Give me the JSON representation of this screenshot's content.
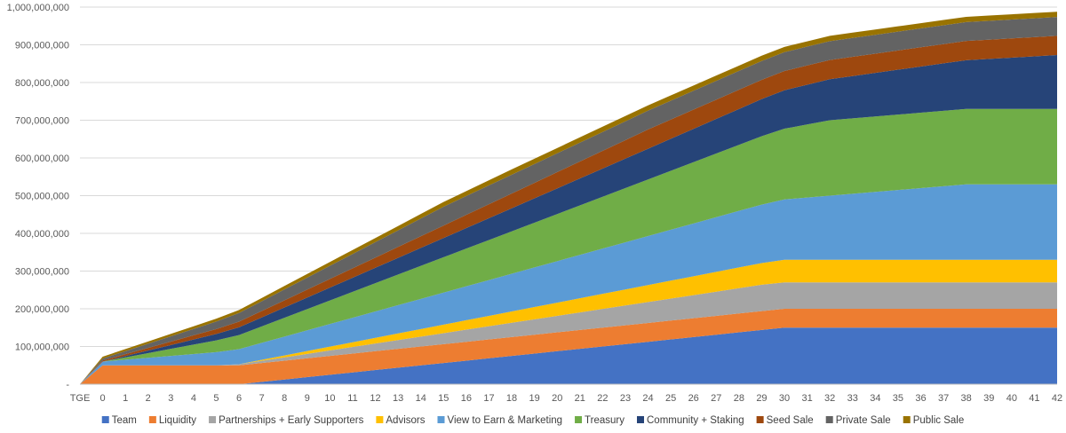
{
  "chart_data": {
    "type": "area",
    "stacked": true,
    "categories": [
      "TGE",
      "0",
      "1",
      "2",
      "3",
      "4",
      "5",
      "6",
      "7",
      "8",
      "9",
      "10",
      "11",
      "12",
      "13",
      "14",
      "15",
      "16",
      "17",
      "18",
      "19",
      "20",
      "21",
      "22",
      "23",
      "24",
      "25",
      "26",
      "27",
      "28",
      "29",
      "30",
      "31",
      "32",
      "33",
      "34",
      "35",
      "36",
      "37",
      "38",
      "39",
      "40",
      "41",
      "42"
    ],
    "ylim": [
      0,
      1000000000
    ],
    "yticks": [
      0,
      100000000,
      200000000,
      300000000,
      400000000,
      500000000,
      600000000,
      700000000,
      800000000,
      900000000,
      1000000000
    ],
    "ytick_labels": [
      "-",
      "100,000,000",
      "200,000,000",
      "300,000,000",
      "400,000,000",
      "500,000,000",
      "600,000,000",
      "700,000,000",
      "800,000,000",
      "900,000,000",
      "1,000,000,000"
    ],
    "grid": true,
    "legend_position": "bottom",
    "series": [
      {
        "name": "Team",
        "color": "#4472C4",
        "values": [
          0,
          0,
          0,
          0,
          0,
          0,
          0,
          0,
          6250000,
          12500000,
          18750000,
          25000000,
          31250000,
          37500000,
          43750000,
          50000000,
          56250000,
          62500000,
          68750000,
          75000000,
          81250000,
          87500000,
          93750000,
          100000000,
          106250000,
          112500000,
          118750000,
          125000000,
          131250000,
          137500000,
          143750000,
          150000000,
          150000000,
          150000000,
          150000000,
          150000000,
          150000000,
          150000000,
          150000000,
          150000000,
          150000000,
          150000000,
          150000000,
          150000000
        ]
      },
      {
        "name": "Liquidity",
        "color": "#ED7D31",
        "values": [
          0,
          50000000,
          50000000,
          50000000,
          50000000,
          50000000,
          50000000,
          50000000,
          50000000,
          50000000,
          50000000,
          50000000,
          50000000,
          50000000,
          50000000,
          50000000,
          50000000,
          50000000,
          50000000,
          50000000,
          50000000,
          50000000,
          50000000,
          50000000,
          50000000,
          50000000,
          50000000,
          50000000,
          50000000,
          50000000,
          50000000,
          50000000,
          50000000,
          50000000,
          50000000,
          50000000,
          50000000,
          50000000,
          50000000,
          50000000,
          50000000,
          50000000,
          50000000,
          50000000
        ]
      },
      {
        "name": "Partnerships + Early Supporters",
        "color": "#A5A5A5",
        "values": [
          0,
          0,
          0,
          0,
          0,
          0,
          0,
          2917000,
          5833000,
          8750000,
          11667000,
          14583000,
          17500000,
          20417000,
          23333000,
          26250000,
          29167000,
          32083000,
          35000000,
          37917000,
          40833000,
          43750000,
          46667000,
          49583000,
          52500000,
          55417000,
          58333000,
          61250000,
          64167000,
          67083000,
          70000000,
          70000000,
          70000000,
          70000000,
          70000000,
          70000000,
          70000000,
          70000000,
          70000000,
          70000000,
          70000000,
          70000000,
          70000000,
          70000000
        ]
      },
      {
        "name": "Advisors",
        "color": "#FFC000",
        "values": [
          0,
          0,
          0,
          0,
          0,
          0,
          0,
          0,
          2500000,
          5000000,
          7500000,
          10000000,
          12500000,
          15000000,
          17500000,
          20000000,
          22500000,
          25000000,
          27500000,
          30000000,
          32500000,
          35000000,
          37500000,
          40000000,
          42500000,
          45000000,
          47500000,
          50000000,
          52500000,
          55000000,
          57500000,
          60000000,
          60000000,
          60000000,
          60000000,
          60000000,
          60000000,
          60000000,
          60000000,
          60000000,
          60000000,
          60000000,
          60000000,
          60000000
        ]
      },
      {
        "name": "View to Earn & Marketing",
        "color": "#5B9BD5",
        "values": [
          0,
          10000000,
          15000000,
          20000000,
          25000000,
          30000000,
          35000000,
          40000000,
          45000000,
          50000000,
          55000000,
          60000000,
          65000000,
          70000000,
          75000000,
          80000000,
          85000000,
          90000000,
          95000000,
          100000000,
          105000000,
          110000000,
          115000000,
          120000000,
          125000000,
          130000000,
          135000000,
          140000000,
          145000000,
          150000000,
          155000000,
          160000000,
          165000000,
          170000000,
          175000000,
          180000000,
          185000000,
          190000000,
          195000000,
          200000000,
          200000000,
          200000000,
          200000000,
          200000000
        ]
      },
      {
        "name": "Treasury",
        "color": "#70AD47",
        "values": [
          0,
          0,
          6250000,
          12500000,
          18750000,
          25000000,
          31250000,
          37500000,
          43750000,
          50000000,
          56250000,
          62500000,
          68750000,
          75000000,
          81250000,
          87500000,
          93750000,
          100000000,
          106250000,
          112500000,
          118750000,
          125000000,
          131250000,
          137500000,
          143750000,
          150000000,
          156250000,
          162500000,
          168750000,
          175000000,
          181250000,
          187500000,
          193750000,
          200000000,
          200000000,
          200000000,
          200000000,
          200000000,
          200000000,
          200000000,
          200000000,
          200000000,
          200000000,
          200000000
        ]
      },
      {
        "name": "Community + Staking",
        "color": "#264478",
        "values": [
          0,
          0,
          3400000,
          6800000,
          10200000,
          13600000,
          17000000,
          20400000,
          23800000,
          27200000,
          30600000,
          34000000,
          37400000,
          40800000,
          44200000,
          47600000,
          51000000,
          54400000,
          57800000,
          61200000,
          64600000,
          68000000,
          71400000,
          74800000,
          78200000,
          81600000,
          85000000,
          88400000,
          91800000,
          95200000,
          98600000,
          102000000,
          105400000,
          108800000,
          112200000,
          115600000,
          119000000,
          122400000,
          125800000,
          129200000,
          132600000,
          136000000,
          139400000,
          142800000
        ]
      },
      {
        "name": "Seed Sale",
        "color": "#9E480E",
        "values": [
          0,
          3000000,
          5000000,
          7000000,
          9000000,
          11000000,
          13000000,
          15000000,
          17000000,
          19000000,
          21000000,
          23000000,
          25000000,
          27000000,
          29000000,
          31000000,
          33000000,
          35000000,
          37000000,
          39000000,
          41000000,
          43000000,
          45000000,
          47000000,
          49000000,
          51000000,
          51000000,
          51000000,
          51000000,
          51000000,
          51000000,
          51000000,
          51000000,
          51000000,
          51000000,
          51000000,
          51000000,
          51000000,
          51000000,
          51000000,
          51000000,
          51000000,
          51000000,
          51000000
        ]
      },
      {
        "name": "Private Sale",
        "color": "#636363",
        "values": [
          0,
          5000000,
          8000000,
          11000000,
          14000000,
          17000000,
          20000000,
          23000000,
          26000000,
          29000000,
          32000000,
          35000000,
          38000000,
          41000000,
          44000000,
          47000000,
          50000000,
          50000000,
          50000000,
          50000000,
          50000000,
          50000000,
          50000000,
          50000000,
          50000000,
          50000000,
          50000000,
          50000000,
          50000000,
          50000000,
          50000000,
          50000000,
          50000000,
          50000000,
          50000000,
          50000000,
          50000000,
          50000000,
          50000000,
          50000000,
          50000000,
          50000000,
          50000000,
          50000000
        ]
      },
      {
        "name": "Public Sale",
        "color": "#997300",
        "values": [
          0,
          5000000,
          5500000,
          6000000,
          6500000,
          7000000,
          7500000,
          8000000,
          8500000,
          9000000,
          9500000,
          10000000,
          10500000,
          11000000,
          11500000,
          12000000,
          12500000,
          13000000,
          13500000,
          14000000,
          14000000,
          14000000,
          14000000,
          14000000,
          14000000,
          14000000,
          14000000,
          14000000,
          14000000,
          14000000,
          14000000,
          14000000,
          14000000,
          14000000,
          14000000,
          14000000,
          14000000,
          14000000,
          14000000,
          14000000,
          14000000,
          14000000,
          14000000,
          14000000
        ]
      }
    ]
  }
}
